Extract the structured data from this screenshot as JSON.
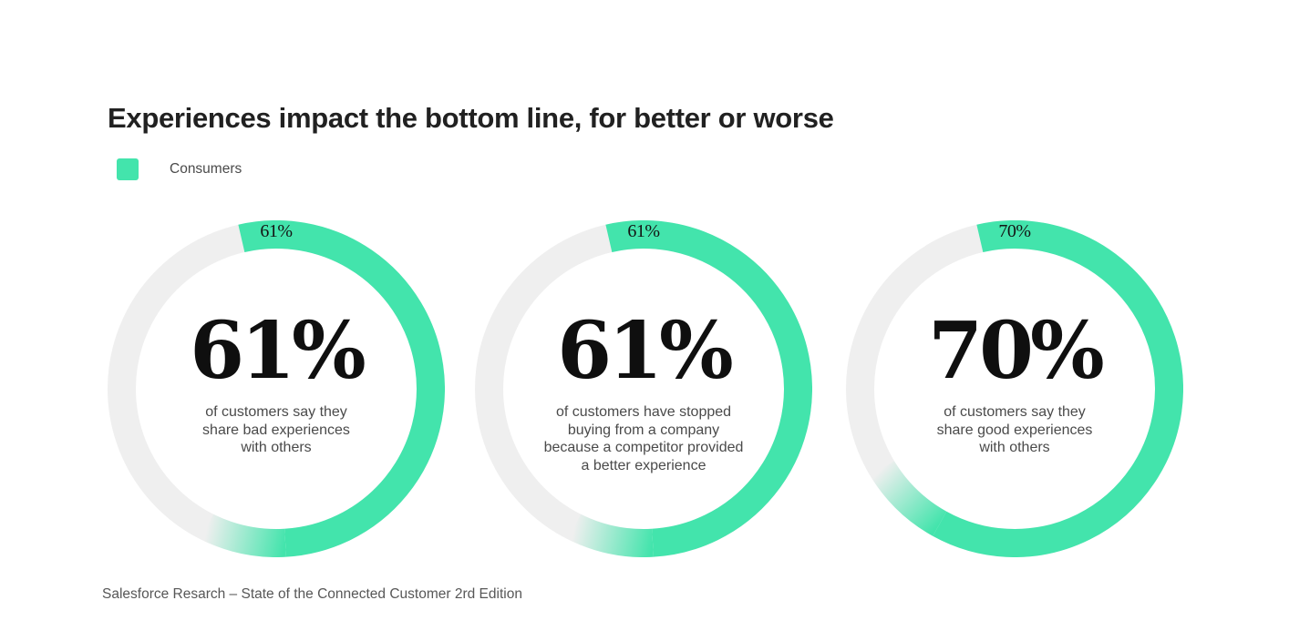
{
  "title": "Experiences impact the bottom line, for better or worse",
  "legend": {
    "label": "Consumers",
    "color": "#43E4AC"
  },
  "footer": {
    "source": "Salesforce Resarch – State of the Connected Customer 2rd Edition"
  },
  "chart_data": {
    "type": "donut",
    "title": "Experiences impact the bottom line, for better or worse",
    "legend_entries": [
      "Consumers"
    ],
    "legend_position": "top-left",
    "unit": "%",
    "color_value": "#43E4AC",
    "color_remainder": "#EFEFEF",
    "start_angle_deg": -13,
    "donuts": [
      {
        "value": 61,
        "remainder": 39,
        "arc_label": "61%",
        "center_value": "61%",
        "description": "of customers say they\nshare bad experiences\nwith others"
      },
      {
        "value": 61,
        "remainder": 39,
        "arc_label": "61%",
        "center_value": "61%",
        "description": "of customers have stopped\nbuying from a company\nbecause a competitor provided\na better experience"
      },
      {
        "value": 70,
        "remainder": 30,
        "arc_label": "70%",
        "center_value": "70%",
        "description": "of customers say they\nshare good experiences\nwith others"
      }
    ]
  }
}
